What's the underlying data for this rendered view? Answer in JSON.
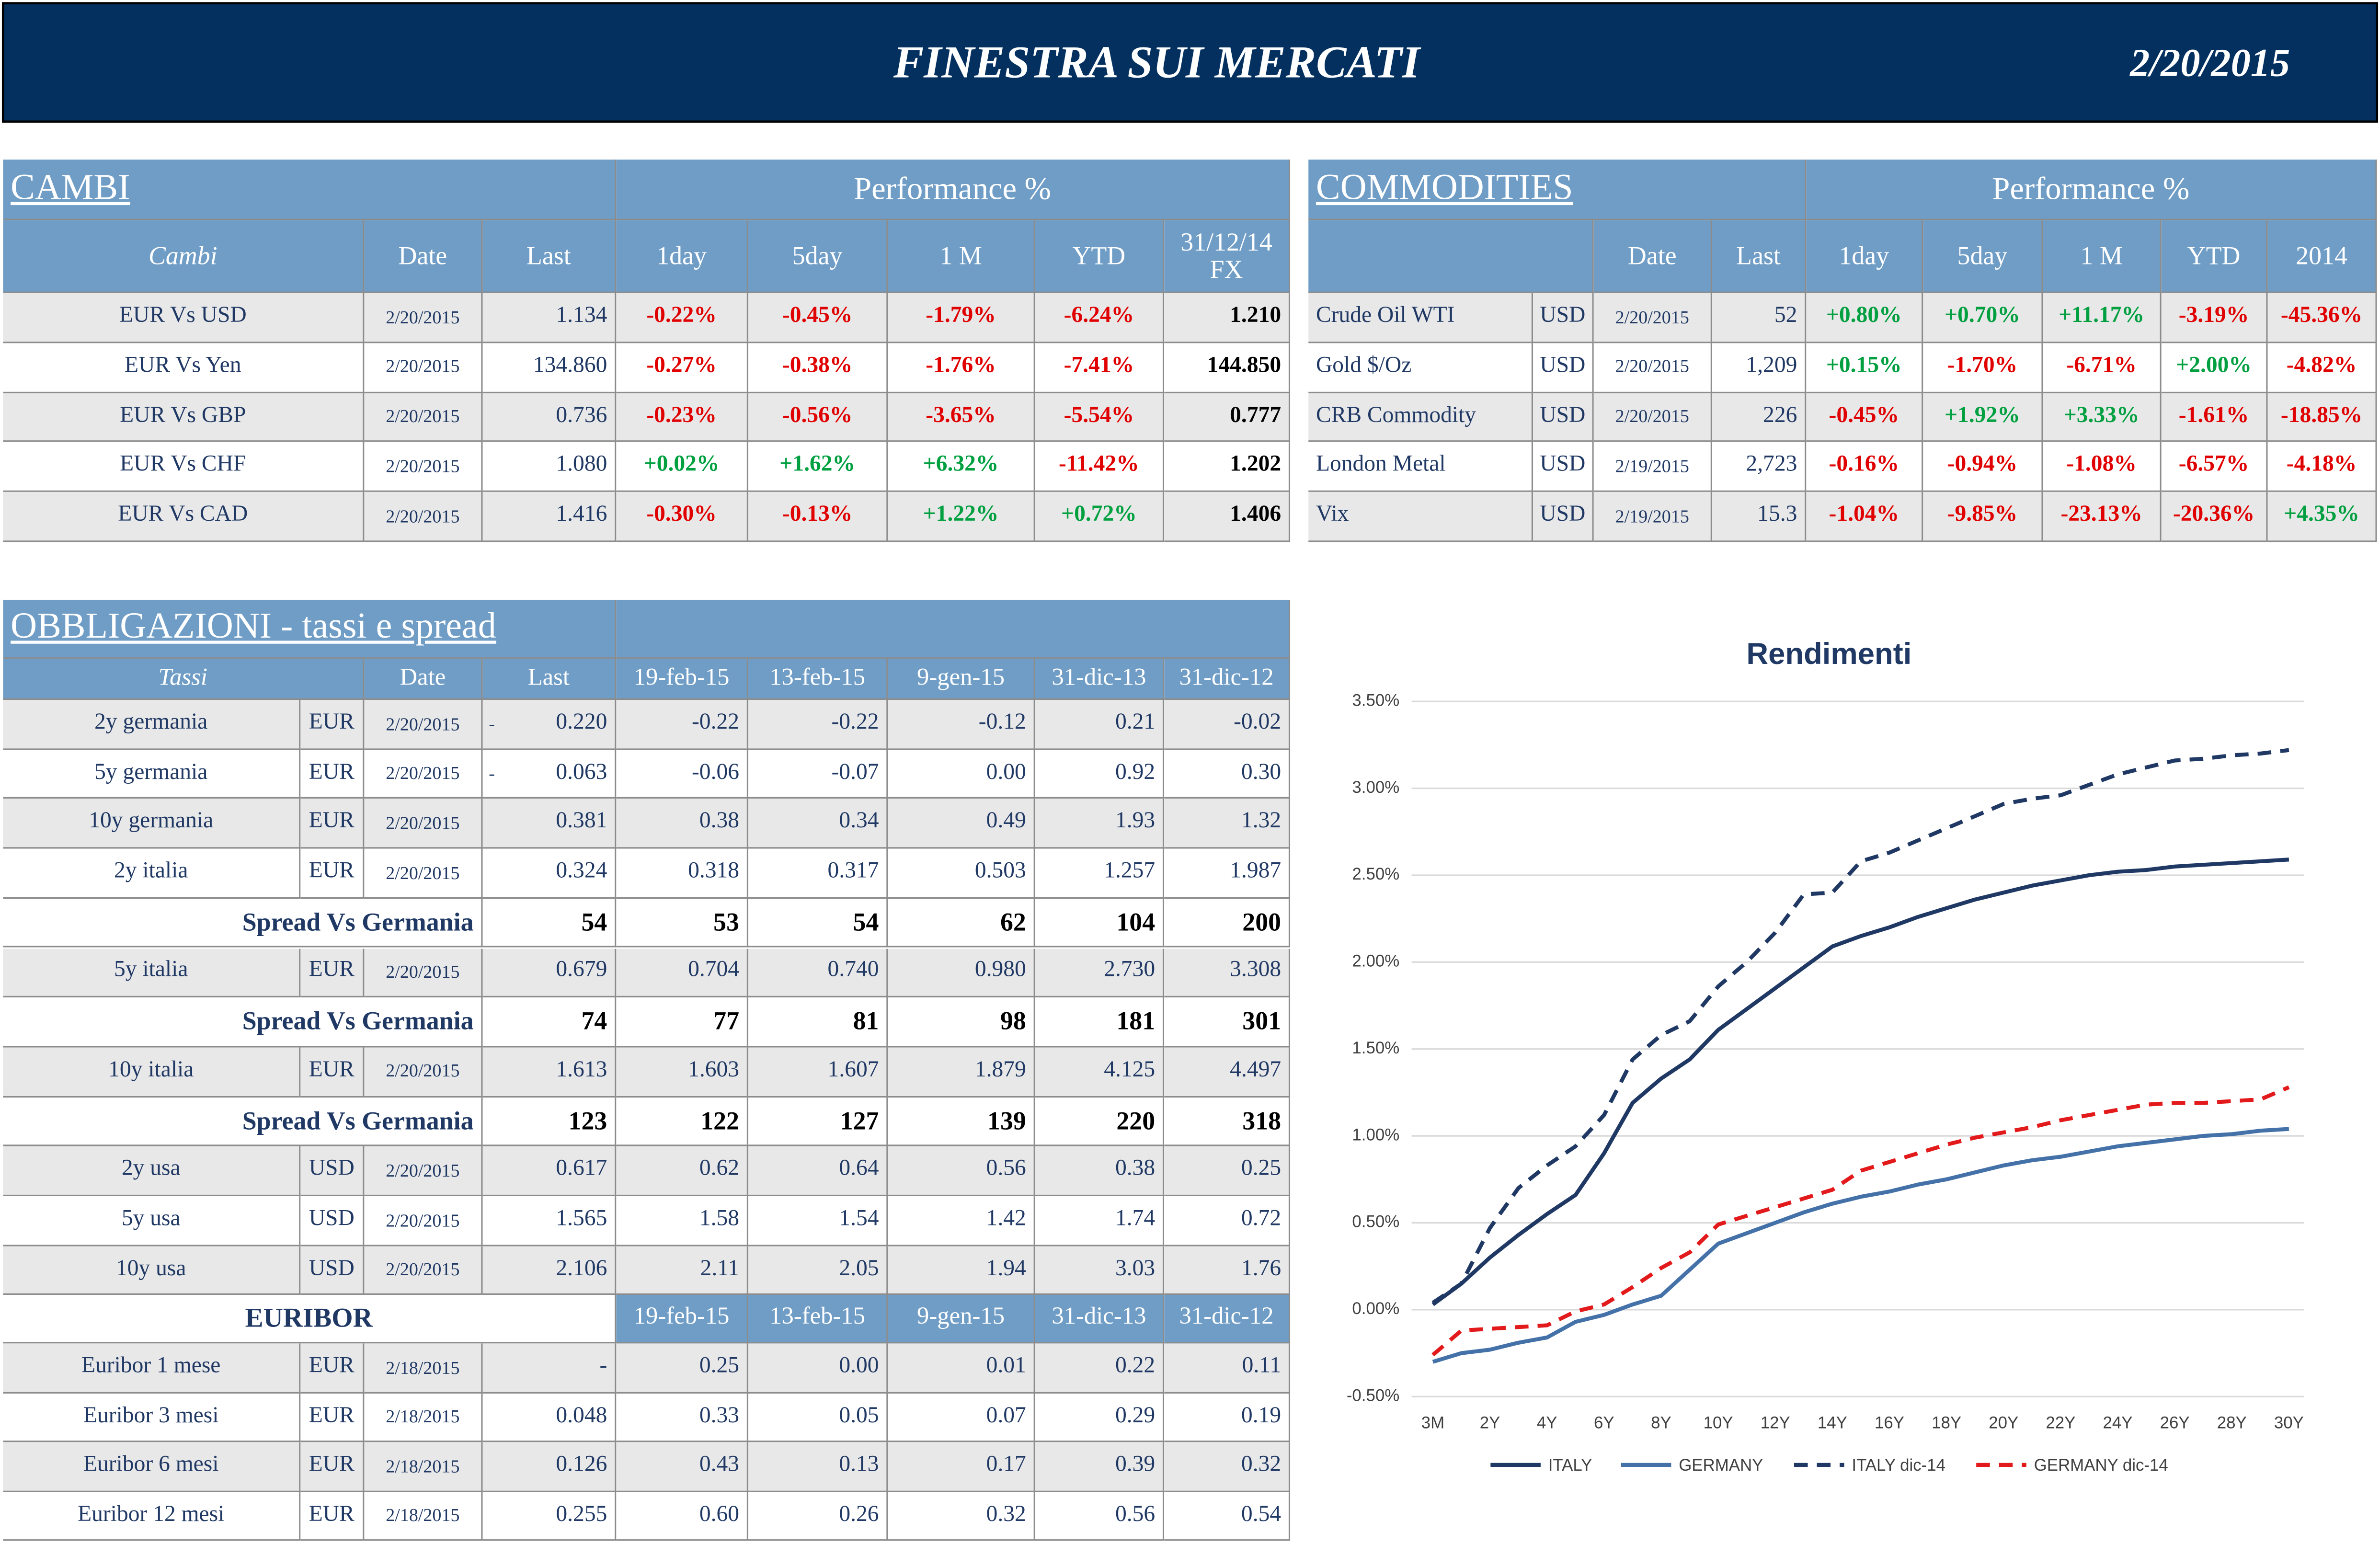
{
  "header": {
    "title": "FINESTRA SUI MERCATI",
    "date": "2/20/2015"
  },
  "cambi": {
    "title": "CAMBI",
    "performance": "Performance  %",
    "columns": [
      "Cambi",
      "Date",
      "Last",
      "1day",
      "5day",
      "1 M",
      "YTD",
      "31/12/14 FX"
    ],
    "rows": [
      [
        "EUR Vs USD",
        "2/20/2015",
        "1.134",
        "-0.22%",
        "-0.45%",
        "-1.79%",
        "-6.24%",
        "1.210"
      ],
      [
        "EUR Vs Yen",
        "2/20/2015",
        "134.860",
        "-0.27%",
        "-0.38%",
        "-1.76%",
        "-7.41%",
        "144.850"
      ],
      [
        "EUR Vs GBP",
        "2/20/2015",
        "0.736",
        "-0.23%",
        "-0.56%",
        "-3.65%",
        "-5.54%",
        "0.777"
      ],
      [
        "EUR Vs CHF",
        "2/20/2015",
        "1.080",
        "+0.02%",
        "+1.62%",
        "+6.32%",
        "-11.42%",
        "1.202"
      ],
      [
        "EUR Vs CAD",
        "2/20/2015",
        "1.416",
        "-0.30%",
        "-0.13%",
        "+1.22%",
        "+0.72%",
        "1.406"
      ]
    ]
  },
  "commodities": {
    "title": "COMMODITIES",
    "performance": "Performance  %",
    "columns": [
      "Date",
      "Last",
      "1day",
      "5day",
      "1 M",
      "YTD",
      "2014"
    ],
    "rows": [
      [
        "Crude Oil WTI",
        "USD",
        "2/20/2015",
        "52",
        "+0.80%",
        "+0.70%",
        "+11.17%",
        "-3.19%",
        "-45.36%"
      ],
      [
        "Gold $/Oz",
        "USD",
        "2/20/2015",
        "1,209",
        "+0.15%",
        "-1.70%",
        "-6.71%",
        "+2.00%",
        "-4.82%"
      ],
      [
        "CRB Commodity",
        "USD",
        "2/20/2015",
        "226",
        "-0.45%",
        "+1.92%",
        "+3.33%",
        "-1.61%",
        "-18.85%"
      ],
      [
        "London Metal",
        "USD",
        "2/19/2015",
        "2,723",
        "-0.16%",
        "-0.94%",
        "-1.08%",
        "-6.57%",
        "-4.18%"
      ],
      [
        "Vix",
        "USD",
        "2/19/2015",
        "15.3",
        "-1.04%",
        "-9.85%",
        "-23.13%",
        "-20.36%",
        "+4.35%"
      ]
    ]
  },
  "obbligazioni": {
    "title": "OBBLIGAZIONI - tassi e spread",
    "columns": [
      "Tassi",
      "Date",
      "Last",
      "19-feb-15",
      "13-feb-15",
      "9-gen-15",
      "31-dic-13",
      "31-dic-12"
    ],
    "rows": [
      {
        "name": "2y germania",
        "currency": "EUR",
        "date": "2/20/2015",
        "flag": "-",
        "last": "0.220",
        "values": [
          "-0.22",
          "-0.22",
          "-0.12",
          "0.21",
          "-0.02"
        ]
      },
      {
        "name": "5y germania",
        "currency": "EUR",
        "date": "2/20/2015",
        "flag": "-",
        "last": "0.063",
        "values": [
          "-0.06",
          "-0.07",
          "0.00",
          "0.92",
          "0.30"
        ]
      },
      {
        "name": "10y germania",
        "currency": "EUR",
        "date": "2/20/2015",
        "last": "0.381",
        "values": [
          "0.38",
          "0.34",
          "0.49",
          "1.93",
          "1.32"
        ]
      },
      {
        "name": "2y italia",
        "currency": "EUR",
        "date": "2/20/2015",
        "last": "0.324",
        "values": [
          "0.318",
          "0.317",
          "0.503",
          "1.257",
          "1.987"
        ]
      },
      {
        "label": "Spread Vs Germania",
        "last": "54",
        "values": [
          "53",
          "54",
          "62",
          "104",
          "200"
        ]
      },
      {
        "name": "5y italia",
        "currency": "EUR",
        "date": "2/20/2015",
        "last": "0.679",
        "values": [
          "0.704",
          "0.740",
          "0.980",
          "2.730",
          "3.308"
        ]
      },
      {
        "label": "Spread Vs Germania",
        "last": "74",
        "values": [
          "77",
          "81",
          "98",
          "181",
          "301"
        ]
      },
      {
        "name": "10y italia",
        "currency": "EUR",
        "date": "2/20/2015",
        "last": "1.613",
        "values": [
          "1.603",
          "1.607",
          "1.879",
          "4.125",
          "4.497"
        ]
      },
      {
        "label": "Spread Vs Germania",
        "last": "123",
        "values": [
          "122",
          "127",
          "139",
          "220",
          "318"
        ]
      },
      {
        "name": "2y usa",
        "currency": "USD",
        "date": "2/20/2015",
        "last": "0.617",
        "values": [
          "0.62",
          "0.64",
          "0.56",
          "0.38",
          "0.25"
        ]
      },
      {
        "name": "5y usa",
        "currency": "USD",
        "date": "2/20/2015",
        "last": "1.565",
        "values": [
          "1.58",
          "1.54",
          "1.42",
          "1.74",
          "0.72"
        ]
      },
      {
        "name": "10y usa",
        "currency": "USD",
        "date": "2/20/2015",
        "last": "2.106",
        "values": [
          "2.11",
          "2.05",
          "1.94",
          "3.03",
          "1.76"
        ]
      }
    ]
  },
  "euribor": {
    "title": "EURIBOR",
    "columns": [
      "19-feb-15",
      "13-feb-15",
      "9-gen-15",
      "31-dic-13",
      "31-dic-12"
    ],
    "rows": [
      {
        "name": "Euribor 1 mese",
        "currency": "EUR",
        "date": "2/18/2015",
        "last": "-",
        "values": [
          "0.25",
          "0.00",
          "0.01",
          "0.22",
          "0.11"
        ]
      },
      {
        "name": "Euribor 3 mesi",
        "currency": "EUR",
        "date": "2/18/2015",
        "last": "0.048",
        "values": [
          "0.33",
          "0.05",
          "0.07",
          "0.29",
          "0.19"
        ]
      },
      {
        "name": "Euribor 6 mesi",
        "currency": "EUR",
        "date": "2/18/2015",
        "last": "0.126",
        "values": [
          "0.43",
          "0.13",
          "0.17",
          "0.39",
          "0.32"
        ]
      },
      {
        "name": "Euribor 12 mesi",
        "currency": "EUR",
        "date": "2/18/2015",
        "last": "0.255",
        "values": [
          "0.60",
          "0.26",
          "0.32",
          "0.56",
          "0.54"
        ]
      }
    ]
  },
  "chart_data": {
    "type": "line",
    "title": "Rendimenti",
    "categories": [
      "3M",
      null,
      "2Y",
      null,
      "4Y",
      null,
      "6Y",
      null,
      "8Y",
      null,
      "10Y",
      null,
      "12Y",
      null,
      "14Y",
      null,
      "16Y",
      null,
      "18Y",
      null,
      "20Y",
      null,
      "22Y",
      null,
      "24Y",
      null,
      "26Y",
      null,
      "28Y",
      null,
      "30Y"
    ],
    "ylim": [
      -0.5,
      3.5
    ],
    "yticks": [
      {
        "value": -0.5,
        "label": "-0.50%"
      },
      {
        "value": 0,
        "label": "0.00%"
      },
      {
        "value": 0.5,
        "label": "0.50%"
      },
      {
        "value": 1,
        "label": "1.00%"
      },
      {
        "value": 1.5,
        "label": "1.50%"
      },
      {
        "value": 2,
        "label": "2.00%"
      },
      {
        "value": 2.5,
        "label": "2.50%"
      },
      {
        "value": 3,
        "label": "3.00%"
      },
      {
        "value": 3.5,
        "label": "3.50%"
      }
    ],
    "grid": true,
    "series": [
      {
        "name": "ITALY",
        "color": "#1f3864",
        "dash": false,
        "values": [
          0.03,
          0.15,
          0.3,
          0.43,
          0.55,
          0.66,
          0.9,
          1.19,
          1.33,
          1.44,
          1.61,
          1.73,
          1.85,
          1.97,
          2.09,
          2.15,
          2.2,
          2.26,
          2.31,
          2.36,
          2.4,
          2.44,
          2.47,
          2.5,
          2.52,
          2.53,
          2.55,
          2.56,
          2.57,
          2.58,
          2.59
        ]
      },
      {
        "name": "GERMANY",
        "color": "#4472a8",
        "dash": false,
        "values": [
          -0.3,
          -0.25,
          -0.23,
          -0.19,
          -0.16,
          -0.07,
          -0.03,
          0.03,
          0.08,
          0.23,
          0.38,
          0.44,
          0.5,
          0.56,
          0.61,
          0.65,
          0.68,
          0.72,
          0.75,
          0.79,
          0.83,
          0.86,
          0.88,
          0.91,
          0.94,
          0.96,
          0.98,
          1.0,
          1.01,
          1.03,
          1.04
        ]
      },
      {
        "name": "ITALY dic-14",
        "color": "#1f3864",
        "dash": true,
        "values": [
          0.04,
          0.15,
          0.47,
          0.7,
          0.83,
          0.94,
          1.12,
          1.44,
          1.58,
          1.66,
          1.86,
          2.0,
          2.17,
          2.39,
          2.4,
          2.58,
          2.63,
          2.7,
          2.77,
          2.84,
          2.91,
          2.94,
          2.96,
          3.02,
          3.08,
          3.12,
          3.16,
          3.17,
          3.19,
          3.2,
          3.22
        ]
      },
      {
        "name": "GERMANY dic-14",
        "color": "#e31a1c",
        "dash": true,
        "values": [
          -0.26,
          -0.12,
          -0.11,
          -0.1,
          -0.09,
          -0.01,
          0.03,
          0.13,
          0.24,
          0.33,
          0.49,
          0.54,
          0.59,
          0.64,
          0.69,
          0.8,
          0.85,
          0.9,
          0.95,
          0.99,
          1.02,
          1.05,
          1.09,
          1.12,
          1.15,
          1.18,
          1.19,
          1.19,
          1.2,
          1.21,
          1.28
        ]
      }
    ]
  }
}
